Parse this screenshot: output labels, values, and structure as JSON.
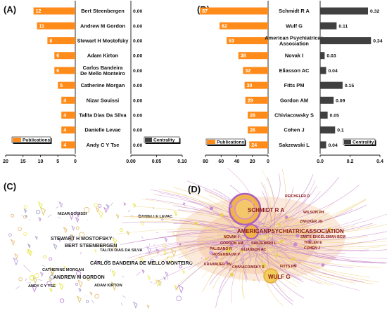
{
  "panels": {
    "a": "(A)",
    "b": "(B)",
    "c": "(C)",
    "d": "(D)"
  },
  "colors": {
    "orange": "#ff8c1a",
    "dark": "#404040"
  },
  "chart_data": [
    {
      "type": "bar",
      "panel": "(A)",
      "categories": [
        "Bert Steenbergen",
        "Andrew M Gordon",
        "Stewart H Mostofsky",
        "Adam Kirton",
        "Carlos Bandeira De Mello Monteiro",
        "Catherine Morgan",
        "Nizar Souissi",
        "Talita Dias Da Silva",
        "Danielle Levac",
        "Andy C Y Tse"
      ],
      "series": [
        {
          "name": "Publications",
          "values": [
            12,
            11,
            8,
            6,
            6,
            5,
            4,
            4,
            4,
            4
          ],
          "xlim": [
            20,
            0
          ],
          "ticks": [
            "20",
            "15",
            "10",
            "5",
            "0"
          ]
        },
        {
          "name": "Centrality",
          "values": [
            0.0,
            0.0,
            0.0,
            0.0,
            0.0,
            0.0,
            0.0,
            0.0,
            0.0,
            0.0
          ],
          "labels": [
            "0.00",
            "0.00",
            "0.00",
            "0.00",
            "0.00",
            "0.00",
            "0.00",
            "0.00",
            "0.00",
            "0.00"
          ],
          "xlim": [
            0,
            0.1
          ],
          "ticks": [
            "0.00",
            "0.05",
            "0.10"
          ]
        }
      ]
    },
    {
      "type": "bar",
      "panel": "(B)",
      "categories": [
        "Schmidt R A",
        "Wulf G",
        "American Psychiatricas Association",
        "Novak I",
        "Eliasson AC",
        "Fitts PM",
        "Gordon AM",
        "Chiviacowsky S",
        "Cohen J",
        "Sakzewski L"
      ],
      "series": [
        {
          "name": "Publications",
          "values": [
            87,
            62,
            53,
            38,
            32,
            30,
            29,
            26,
            26,
            24
          ],
          "xlim": [
            80,
            0
          ],
          "ticks": [
            "80",
            "60",
            "40",
            "20",
            "0"
          ]
        },
        {
          "name": "Centrality",
          "values": [
            0.32,
            0.11,
            0.34,
            0.03,
            0.04,
            0.15,
            0.09,
            0.05,
            0.1,
            0.04
          ],
          "labels": [
            "0.32",
            "0.11",
            "0.34",
            "0.03",
            "0.04",
            "0.15",
            "0.09",
            "0.05",
            "0.1",
            "0.04"
          ],
          "xlim": [
            0,
            0.4
          ],
          "ticks": [
            "0.0",
            "0.2",
            "0.4"
          ]
        }
      ]
    }
  ],
  "network_c": {
    "labels": [
      "NIZAR SOUISSI",
      "DANIELLE LEVAC",
      "STEWART H MOSTOFSKY",
      "BERT STEENBERGEN",
      "TALITA DIAS DA SILVA",
      "CARLOS BANDEIRA DE MELLO MONTEIRO",
      "CATHERINE MORGAN",
      "ANDREW M GORDON",
      "ADAM KIRTON",
      "ANDY C Y TSE"
    ]
  },
  "network_d": {
    "labels": [
      "REICHELER D",
      "SCHMIDT R A",
      "WILSON PH",
      "ZWICKER JG",
      "AMERICANPSYCHIATRICASSOCIATION",
      "SMITS-ENGELSMAN BCM",
      "THELEN E",
      "NOVAK I",
      "SAKZEWSKI L",
      "COHEN J",
      "GORDON AM",
      "ELIASSON AC",
      "PALISANO R",
      "ROSENBAUM P",
      "KRAKAUER JW",
      "CHIVIACOWSKY S",
      "FITTS PM",
      "WULF G"
    ]
  }
}
